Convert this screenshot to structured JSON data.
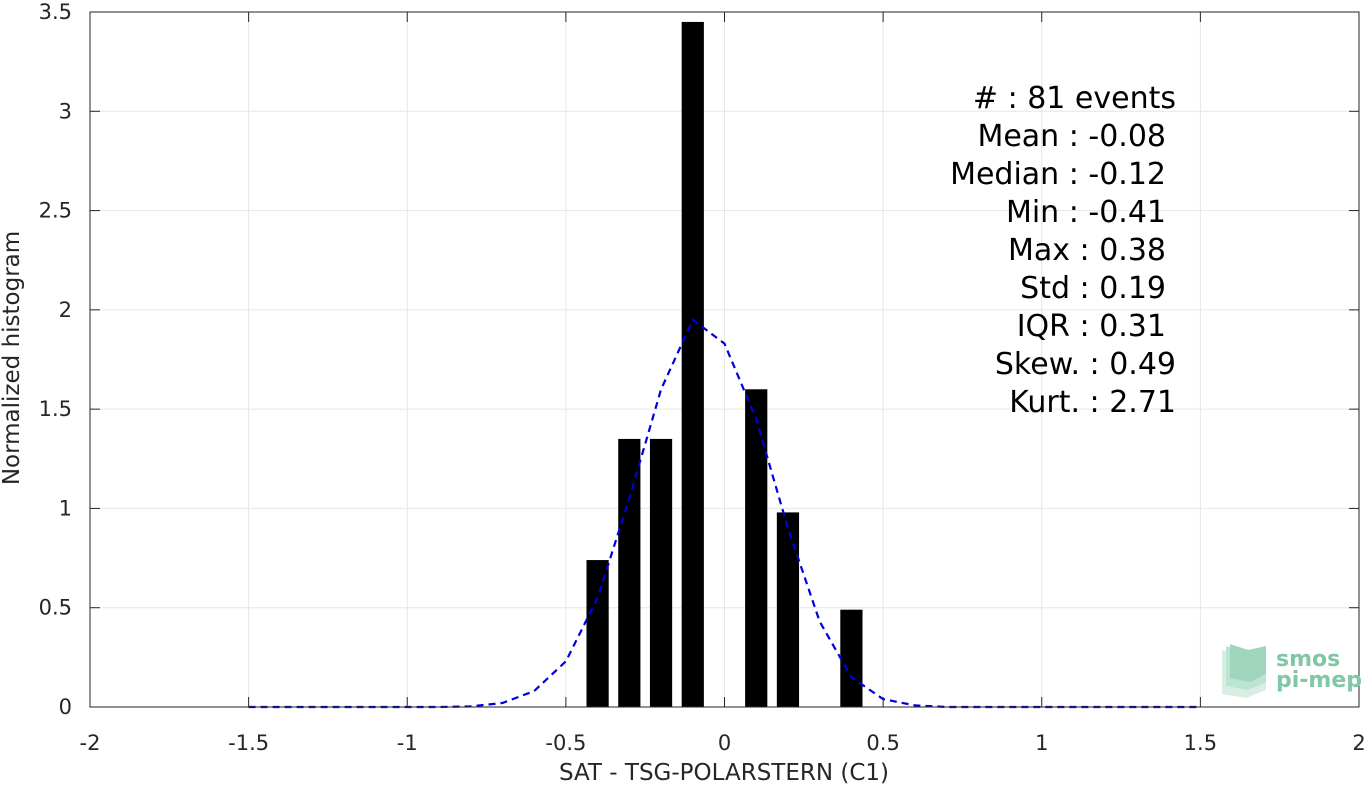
{
  "chart_data": {
    "type": "bar",
    "xlabel": "SAT - TSG-POLARSTERN (C1)",
    "ylabel": "Normalized histogram",
    "xlim": [
      -2,
      2
    ],
    "ylim": [
      0,
      3.5
    ],
    "x_ticks": [
      -2,
      -1.5,
      -1,
      -0.5,
      0,
      0.5,
      1,
      1.5,
      2
    ],
    "x_tick_labels": [
      "-2",
      "-1.5",
      "-1",
      "-0.5",
      "0",
      "0.5",
      "1",
      "1.5",
      "2"
    ],
    "y_ticks": [
      0,
      0.5,
      1,
      1.5,
      2,
      2.5,
      3,
      3.5
    ],
    "y_tick_labels": [
      "0",
      "0.5",
      "1",
      "1.5",
      "2",
      "2.5",
      "3",
      "3.5"
    ],
    "grid": true,
    "bar_width": 0.07,
    "bars": [
      {
        "x": -0.4,
        "y": 0.74
      },
      {
        "x": -0.3,
        "y": 1.35
      },
      {
        "x": -0.2,
        "y": 1.35
      },
      {
        "x": -0.1,
        "y": 3.45
      },
      {
        "x": 0.1,
        "y": 1.6
      },
      {
        "x": 0.2,
        "y": 0.98
      },
      {
        "x": 0.4,
        "y": 0.49
      }
    ],
    "bar_color": "#000000",
    "fit_curve": {
      "style": "dashed",
      "color": "#0000e0",
      "x": [
        -1.5,
        -1.4,
        -1.3,
        -1.2,
        -1.1,
        -1.0,
        -0.9,
        -0.8,
        -0.7,
        -0.6,
        -0.5,
        -0.4,
        -0.3,
        -0.2,
        -0.1,
        0.0,
        0.1,
        0.2,
        0.3,
        0.4,
        0.5,
        0.6,
        0.7,
        0.8,
        0.9,
        1.0,
        1.1,
        1.2,
        1.3,
        1.4,
        1.5
      ],
      "y": [
        0,
        0,
        0,
        0,
        0,
        0,
        0,
        0.003,
        0.02,
        0.08,
        0.23,
        0.55,
        1.05,
        1.6,
        1.95,
        1.83,
        1.45,
        0.9,
        0.43,
        0.15,
        0.04,
        0.008,
        0,
        0,
        0,
        0,
        0,
        0,
        0,
        0,
        0
      ]
    }
  },
  "stats": {
    "count": "#  : 81 events",
    "mean": "Mean : -0.08",
    "median": "Median : -0.12",
    "min": "Min : -0.41",
    "max": "Max : 0.38",
    "std": "Std : 0.19",
    "iqr": "IQR : 0.31",
    "skew": "Skew. : 0.49",
    "kurt": "Kurt. : 2.71"
  },
  "logo": {
    "line1": "smos",
    "line2": "pi-mep",
    "color": "#7fc7a6"
  }
}
